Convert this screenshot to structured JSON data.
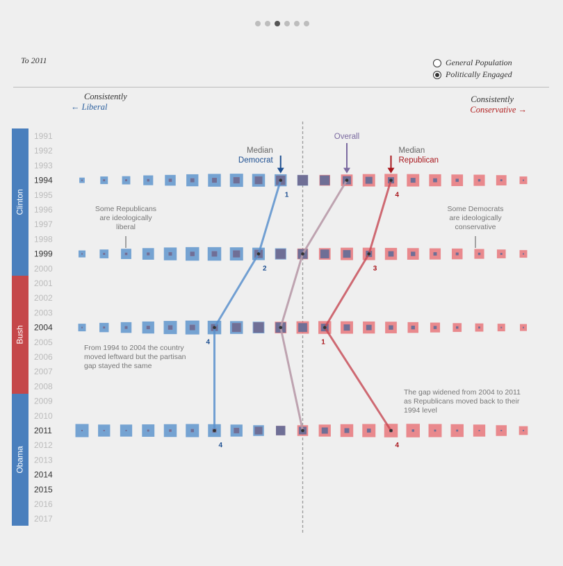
{
  "pager": {
    "count": 6,
    "active": 2
  },
  "header": {
    "period": "To 2011"
  },
  "legend": {
    "options": [
      {
        "label": "General Population",
        "selected": false
      },
      {
        "label": "Politically Engaged",
        "selected": true
      }
    ]
  },
  "scale": {
    "left_top": "Consistently",
    "left_bottom": "Liberal",
    "right_top": "Consistently",
    "right_bottom": "Conservative",
    "left_arrow": "←",
    "right_arrow": "→"
  },
  "eras": [
    {
      "label": "Clinton",
      "from": 1991,
      "to": 2000,
      "color": "#4a7fbd"
    },
    {
      "label": "Bush",
      "from": 2001,
      "to": 2008,
      "color": "#c5474a"
    },
    {
      "label": "Obama",
      "from": 2009,
      "to": 2017,
      "color": "#4a7fbd"
    }
  ],
  "colors": {
    "democrat": "#5f95cc",
    "republican": "#e8777b",
    "overlap": "#6f6f96",
    "democrat_text": "#1d4f91",
    "republican_text": "#a8151b",
    "overall": "#7b6aa0",
    "year_active": "#333333",
    "year_inactive": "#bbbbbb"
  },
  "chart_data": {
    "type": "scatter",
    "x_bins": 21,
    "years": [
      1991,
      1992,
      1993,
      1994,
      1995,
      1996,
      1997,
      1998,
      1999,
      2000,
      2001,
      2002,
      2003,
      2004,
      2005,
      2006,
      2007,
      2008,
      2009,
      2010,
      2011,
      2012,
      2013,
      2014,
      2015,
      2016,
      2017
    ],
    "highlight_years": [
      1994,
      1999,
      2004,
      2011,
      2014,
      2015
    ],
    "rows": [
      {
        "year": 1994,
        "dem": [
          0.15,
          0.3,
          0.35,
          0.5,
          0.6,
          0.75,
          0.85,
          0.9,
          0.85,
          0.75,
          0.6,
          0.5,
          0.35,
          0.25,
          0.2,
          0.12,
          0.08,
          0.05,
          0.03,
          0.02,
          0.01
        ],
        "rep": [
          0.01,
          0.02,
          0.02,
          0.03,
          0.05,
          0.08,
          0.12,
          0.2,
          0.3,
          0.45,
          0.55,
          0.6,
          0.7,
          0.8,
          0.85,
          0.8,
          0.75,
          0.7,
          0.65,
          0.55,
          0.3
        ]
      },
      {
        "year": 1999,
        "dem": [
          0.25,
          0.4,
          0.55,
          0.7,
          0.85,
          0.95,
          0.95,
          0.9,
          0.8,
          0.65,
          0.5,
          0.4,
          0.3,
          0.2,
          0.15,
          0.1,
          0.06,
          0.04,
          0.03,
          0.02,
          0.01
        ],
        "rep": [
          0.01,
          0.02,
          0.03,
          0.04,
          0.06,
          0.1,
          0.15,
          0.25,
          0.35,
          0.5,
          0.6,
          0.7,
          0.8,
          0.8,
          0.75,
          0.7,
          0.65,
          0.6,
          0.5,
          0.4,
          0.3
        ]
      },
      {
        "year": 2004,
        "dem": [
          0.3,
          0.45,
          0.6,
          0.75,
          0.9,
          1.0,
          0.95,
          0.85,
          0.7,
          0.55,
          0.4,
          0.3,
          0.2,
          0.15,
          0.1,
          0.07,
          0.05,
          0.03,
          0.02,
          0.01,
          0.01
        ],
        "rep": [
          0.01,
          0.02,
          0.04,
          0.06,
          0.1,
          0.15,
          0.25,
          0.4,
          0.55,
          0.7,
          0.8,
          0.85,
          0.8,
          0.75,
          0.7,
          0.6,
          0.5,
          0.4,
          0.35,
          0.3,
          0.25
        ]
      },
      {
        "year": 2011,
        "dem": [
          0.9,
          0.75,
          0.75,
          0.8,
          0.85,
          0.9,
          0.85,
          0.75,
          0.6,
          0.45,
          0.3,
          0.2,
          0.12,
          0.08,
          0.05,
          0.03,
          0.02,
          0.02,
          0.01,
          0.01,
          0.01
        ],
        "rep": [
          0.01,
          0.01,
          0.01,
          0.02,
          0.03,
          0.05,
          0.08,
          0.15,
          0.3,
          0.45,
          0.6,
          0.75,
          0.85,
          0.9,
          0.95,
          0.95,
          0.9,
          0.85,
          0.75,
          0.6,
          0.4
        ]
      }
    ],
    "medians": {
      "democrat": [
        {
          "year": 1994,
          "bin": 9,
          "label": "1"
        },
        {
          "year": 1999,
          "bin": 8,
          "label": "2"
        },
        {
          "year": 2004,
          "bin": 6,
          "label": "4"
        },
        {
          "year": 2011,
          "bin": 6,
          "label": "4"
        }
      ],
      "overall": [
        {
          "year": 1994,
          "bin": 12
        },
        {
          "year": 1999,
          "bin": 10
        },
        {
          "year": 2004,
          "bin": 9
        },
        {
          "year": 2011,
          "bin": 10
        }
      ],
      "republican": [
        {
          "year": 1994,
          "bin": 14,
          "label": "4"
        },
        {
          "year": 1999,
          "bin": 13,
          "label": "3"
        },
        {
          "year": 2004,
          "bin": 11,
          "label": "1"
        },
        {
          "year": 2011,
          "bin": 14,
          "label": "4"
        }
      ]
    },
    "median_labels": {
      "democrat": [
        "Median",
        "Democrat"
      ],
      "overall": [
        "Overall"
      ],
      "republican": [
        "Median",
        "Republican"
      ]
    },
    "annotations": [
      {
        "id": "rep-liberal",
        "lines": [
          "Some Republicans",
          "are ideologically",
          "liberal"
        ]
      },
      {
        "id": "dem-conservative",
        "lines": [
          "Some Democrats",
          "are ideologically",
          "conservative"
        ]
      },
      {
        "id": "leftward",
        "lines": [
          "From 1994 to 2004 the country",
          "moved leftward but the partisan",
          "gap stayed the same"
        ]
      },
      {
        "id": "gap",
        "lines": [
          "The gap widened from 2004 to 2011",
          "as Republicans moved back to their",
          "1994 level"
        ]
      }
    ]
  }
}
